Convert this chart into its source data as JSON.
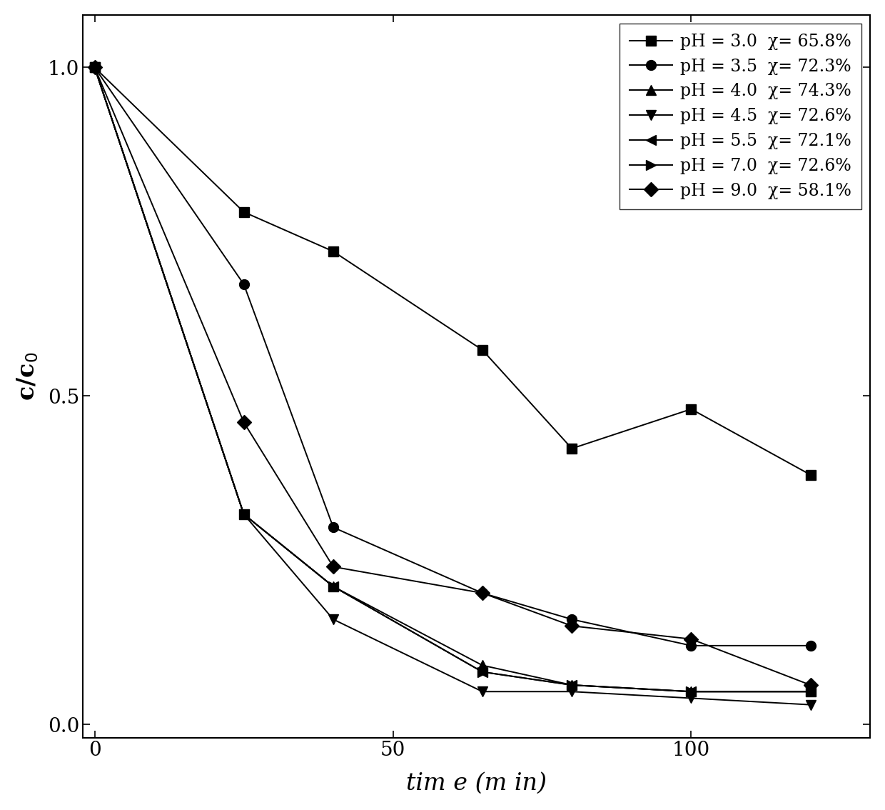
{
  "series": [
    {
      "label": "pH = 3.0  χ= 65.8%",
      "marker": "s",
      "x": [
        0,
        25,
        40,
        65,
        80,
        100,
        120
      ],
      "y": [
        1.0,
        0.78,
        0.72,
        0.57,
        0.42,
        0.48,
        0.38
      ]
    },
    {
      "label": "pH = 3.5  χ= 72.3%",
      "marker": "o",
      "x": [
        0,
        25,
        40,
        65,
        80,
        100,
        120
      ],
      "y": [
        1.0,
        0.67,
        0.3,
        0.2,
        0.16,
        0.12,
        0.12
      ]
    },
    {
      "label": "pH = 4.0  χ= 74.3%",
      "marker": "^",
      "x": [
        0,
        25,
        40,
        65,
        80,
        100,
        120
      ],
      "y": [
        1.0,
        0.32,
        0.21,
        0.09,
        0.06,
        0.05,
        0.05
      ]
    },
    {
      "label": "pH = 4.5  χ= 72.6%",
      "marker": "v",
      "x": [
        0,
        25,
        40,
        65,
        80,
        100,
        120
      ],
      "y": [
        1.0,
        0.32,
        0.16,
        0.05,
        0.05,
        0.04,
        0.03
      ]
    },
    {
      "label": "pH = 5.5  χ= 72.1%",
      "marker": "<",
      "x": [
        0,
        25,
        40,
        65,
        80,
        100,
        120
      ],
      "y": [
        1.0,
        0.32,
        0.21,
        0.08,
        0.06,
        0.05,
        0.05
      ]
    },
    {
      "label": "pH = 7.0  χ= 72.6%",
      "marker": ">",
      "x": [
        0,
        25,
        40,
        65,
        80,
        100,
        120
      ],
      "y": [
        1.0,
        0.32,
        0.21,
        0.08,
        0.06,
        0.05,
        0.05
      ]
    },
    {
      "label": "pH = 9.0  χ= 58.1%",
      "marker": "D",
      "x": [
        0,
        25,
        40,
        65,
        80,
        100,
        120
      ],
      "y": [
        1.0,
        0.46,
        0.24,
        0.2,
        0.15,
        0.13,
        0.06
      ]
    }
  ],
  "xlabel": "tim e (m in)",
  "ylabel": "c/c$_0$",
  "xlim": [
    -2,
    130
  ],
  "ylim": [
    -0.02,
    1.08
  ],
  "xticks": [
    0,
    50,
    100
  ],
  "yticks": [
    0.0,
    0.5,
    1.0
  ],
  "color": "black",
  "linewidth": 1.4,
  "markersize": 10,
  "legend_loc": "upper right",
  "legend_fontsize": 17,
  "label_fontsize": 24,
  "tick_fontsize": 20
}
